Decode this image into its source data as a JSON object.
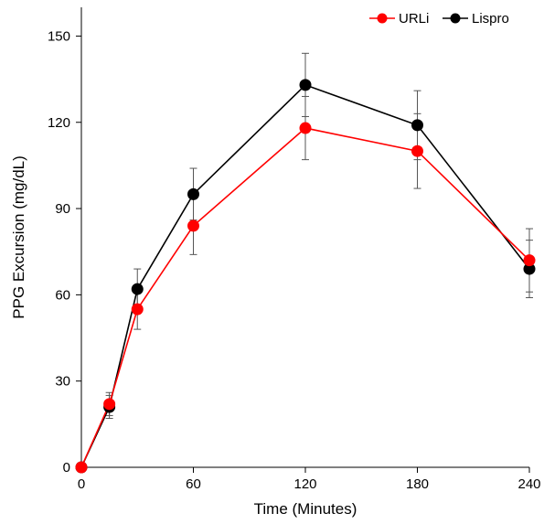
{
  "chart_data": {
    "type": "line",
    "xlabel": "Time (Minutes)",
    "ylabel": "PPG Excursion (mg/dL)",
    "xlim": [
      0,
      240
    ],
    "ylim": [
      0,
      160
    ],
    "x_ticks": [
      0,
      60,
      120,
      180,
      240
    ],
    "y_ticks": [
      0,
      30,
      60,
      90,
      120,
      150
    ],
    "grid": false,
    "legend_position": "top-right",
    "series": [
      {
        "name": "URLi",
        "color": "#ff0000",
        "x": [
          0,
          15,
          30,
          60,
          120,
          180,
          240
        ],
        "values": [
          0,
          22,
          55,
          84,
          118,
          110,
          72
        ],
        "error": [
          0,
          4,
          7,
          10,
          11,
          13,
          11
        ]
      },
      {
        "name": "Lispro",
        "color": "#000000",
        "x": [
          0,
          15,
          30,
          60,
          120,
          180,
          240
        ],
        "values": [
          0,
          21,
          62,
          95,
          133,
          119,
          69
        ],
        "error": [
          0,
          4,
          7,
          9,
          11,
          12,
          10
        ]
      }
    ]
  }
}
